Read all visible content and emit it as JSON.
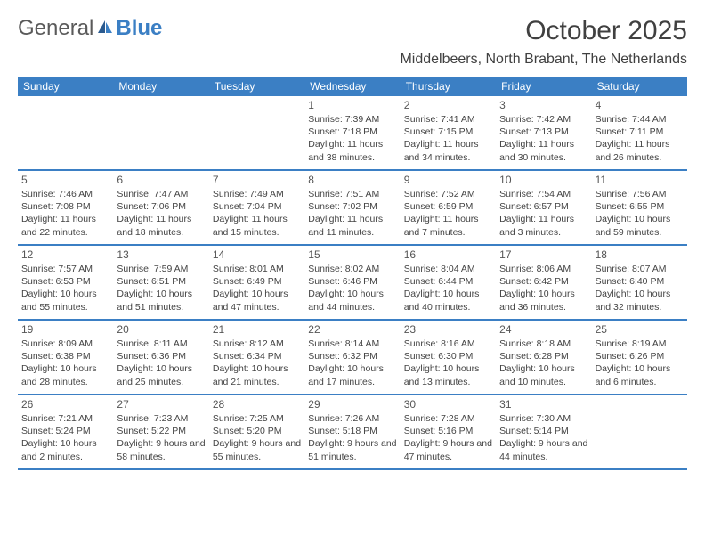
{
  "header": {
    "logo_general": "General",
    "logo_blue": "Blue",
    "month_title": "October 2025",
    "location": "Middelbeers, North Brabant, The Netherlands"
  },
  "colors": {
    "header_bg": "#3b7fc4",
    "header_text": "#ffffff",
    "divider": "#3b7fc4",
    "background": "#ffffff",
    "day_text": "#444444",
    "title_text": "#404040"
  },
  "day_names": [
    "Sunday",
    "Monday",
    "Tuesday",
    "Wednesday",
    "Thursday",
    "Friday",
    "Saturday"
  ],
  "weeks": [
    [
      null,
      null,
      null,
      {
        "num": "1",
        "sunrise": "7:39 AM",
        "sunset": "7:18 PM",
        "daylight": "11 hours and 38 minutes."
      },
      {
        "num": "2",
        "sunrise": "7:41 AM",
        "sunset": "7:15 PM",
        "daylight": "11 hours and 34 minutes."
      },
      {
        "num": "3",
        "sunrise": "7:42 AM",
        "sunset": "7:13 PM",
        "daylight": "11 hours and 30 minutes."
      },
      {
        "num": "4",
        "sunrise": "7:44 AM",
        "sunset": "7:11 PM",
        "daylight": "11 hours and 26 minutes."
      }
    ],
    [
      {
        "num": "5",
        "sunrise": "7:46 AM",
        "sunset": "7:08 PM",
        "daylight": "11 hours and 22 minutes."
      },
      {
        "num": "6",
        "sunrise": "7:47 AM",
        "sunset": "7:06 PM",
        "daylight": "11 hours and 18 minutes."
      },
      {
        "num": "7",
        "sunrise": "7:49 AM",
        "sunset": "7:04 PM",
        "daylight": "11 hours and 15 minutes."
      },
      {
        "num": "8",
        "sunrise": "7:51 AM",
        "sunset": "7:02 PM",
        "daylight": "11 hours and 11 minutes."
      },
      {
        "num": "9",
        "sunrise": "7:52 AM",
        "sunset": "6:59 PM",
        "daylight": "11 hours and 7 minutes."
      },
      {
        "num": "10",
        "sunrise": "7:54 AM",
        "sunset": "6:57 PM",
        "daylight": "11 hours and 3 minutes."
      },
      {
        "num": "11",
        "sunrise": "7:56 AM",
        "sunset": "6:55 PM",
        "daylight": "10 hours and 59 minutes."
      }
    ],
    [
      {
        "num": "12",
        "sunrise": "7:57 AM",
        "sunset": "6:53 PM",
        "daylight": "10 hours and 55 minutes."
      },
      {
        "num": "13",
        "sunrise": "7:59 AM",
        "sunset": "6:51 PM",
        "daylight": "10 hours and 51 minutes."
      },
      {
        "num": "14",
        "sunrise": "8:01 AM",
        "sunset": "6:49 PM",
        "daylight": "10 hours and 47 minutes."
      },
      {
        "num": "15",
        "sunrise": "8:02 AM",
        "sunset": "6:46 PM",
        "daylight": "10 hours and 44 minutes."
      },
      {
        "num": "16",
        "sunrise": "8:04 AM",
        "sunset": "6:44 PM",
        "daylight": "10 hours and 40 minutes."
      },
      {
        "num": "17",
        "sunrise": "8:06 AM",
        "sunset": "6:42 PM",
        "daylight": "10 hours and 36 minutes."
      },
      {
        "num": "18",
        "sunrise": "8:07 AM",
        "sunset": "6:40 PM",
        "daylight": "10 hours and 32 minutes."
      }
    ],
    [
      {
        "num": "19",
        "sunrise": "8:09 AM",
        "sunset": "6:38 PM",
        "daylight": "10 hours and 28 minutes."
      },
      {
        "num": "20",
        "sunrise": "8:11 AM",
        "sunset": "6:36 PM",
        "daylight": "10 hours and 25 minutes."
      },
      {
        "num": "21",
        "sunrise": "8:12 AM",
        "sunset": "6:34 PM",
        "daylight": "10 hours and 21 minutes."
      },
      {
        "num": "22",
        "sunrise": "8:14 AM",
        "sunset": "6:32 PM",
        "daylight": "10 hours and 17 minutes."
      },
      {
        "num": "23",
        "sunrise": "8:16 AM",
        "sunset": "6:30 PM",
        "daylight": "10 hours and 13 minutes."
      },
      {
        "num": "24",
        "sunrise": "8:18 AM",
        "sunset": "6:28 PM",
        "daylight": "10 hours and 10 minutes."
      },
      {
        "num": "25",
        "sunrise": "8:19 AM",
        "sunset": "6:26 PM",
        "daylight": "10 hours and 6 minutes."
      }
    ],
    [
      {
        "num": "26",
        "sunrise": "7:21 AM",
        "sunset": "5:24 PM",
        "daylight": "10 hours and 2 minutes."
      },
      {
        "num": "27",
        "sunrise": "7:23 AM",
        "sunset": "5:22 PM",
        "daylight": "9 hours and 58 minutes."
      },
      {
        "num": "28",
        "sunrise": "7:25 AM",
        "sunset": "5:20 PM",
        "daylight": "9 hours and 55 minutes."
      },
      {
        "num": "29",
        "sunrise": "7:26 AM",
        "sunset": "5:18 PM",
        "daylight": "9 hours and 51 minutes."
      },
      {
        "num": "30",
        "sunrise": "7:28 AM",
        "sunset": "5:16 PM",
        "daylight": "9 hours and 47 minutes."
      },
      {
        "num": "31",
        "sunrise": "7:30 AM",
        "sunset": "5:14 PM",
        "daylight": "9 hours and 44 minutes."
      },
      null
    ]
  ],
  "labels": {
    "sunrise": "Sunrise:",
    "sunset": "Sunset:",
    "daylight": "Daylight:"
  }
}
